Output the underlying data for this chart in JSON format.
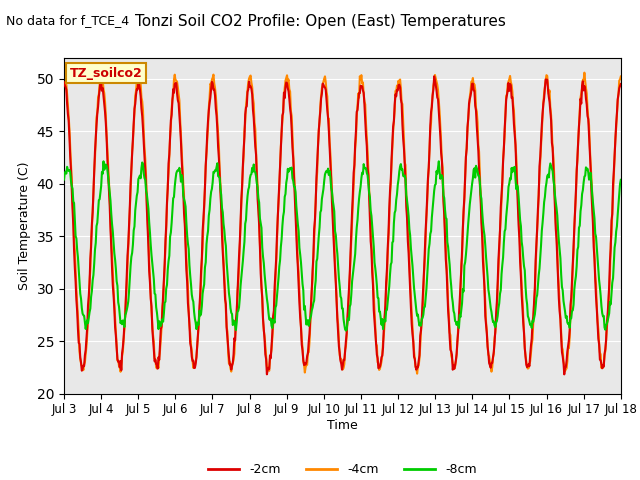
{
  "title": "Tonzi Soil CO2 Profile: Open (East) Temperatures",
  "subtitle": "No data for f_TCE_4",
  "ylabel": "Soil Temperature (C)",
  "xlabel": "Time",
  "legend_label": "TZ_soilco2",
  "ylim": [
    20,
    52
  ],
  "yticks": [
    20,
    25,
    30,
    35,
    40,
    45,
    50
  ],
  "series_labels": [
    "-2cm",
    "-4cm",
    "-8cm"
  ],
  "series_colors": [
    "#dd0000",
    "#ff8800",
    "#00cc00"
  ],
  "series_linewidths": [
    1.5,
    1.5,
    1.5
  ],
  "bg_color": "#e8e8e8",
  "fig_color": "#ffffff",
  "x_start": 3,
  "x_end": 18,
  "xtick_positions": [
    3,
    4,
    5,
    6,
    7,
    8,
    9,
    10,
    11,
    12,
    13,
    14,
    15,
    16,
    17,
    18
  ],
  "xtick_labels": [
    "Jul 3",
    "Jul 4",
    "Jul 5",
    "Jul 6",
    "Jul 7",
    "Jul 8",
    "Jul 9",
    "Jul 10",
    "Jul 11",
    "Jul 12",
    "Jul 13",
    "Jul 14",
    "Jul 15",
    "Jul 16",
    "Jul 17",
    "Jul 18"
  ]
}
